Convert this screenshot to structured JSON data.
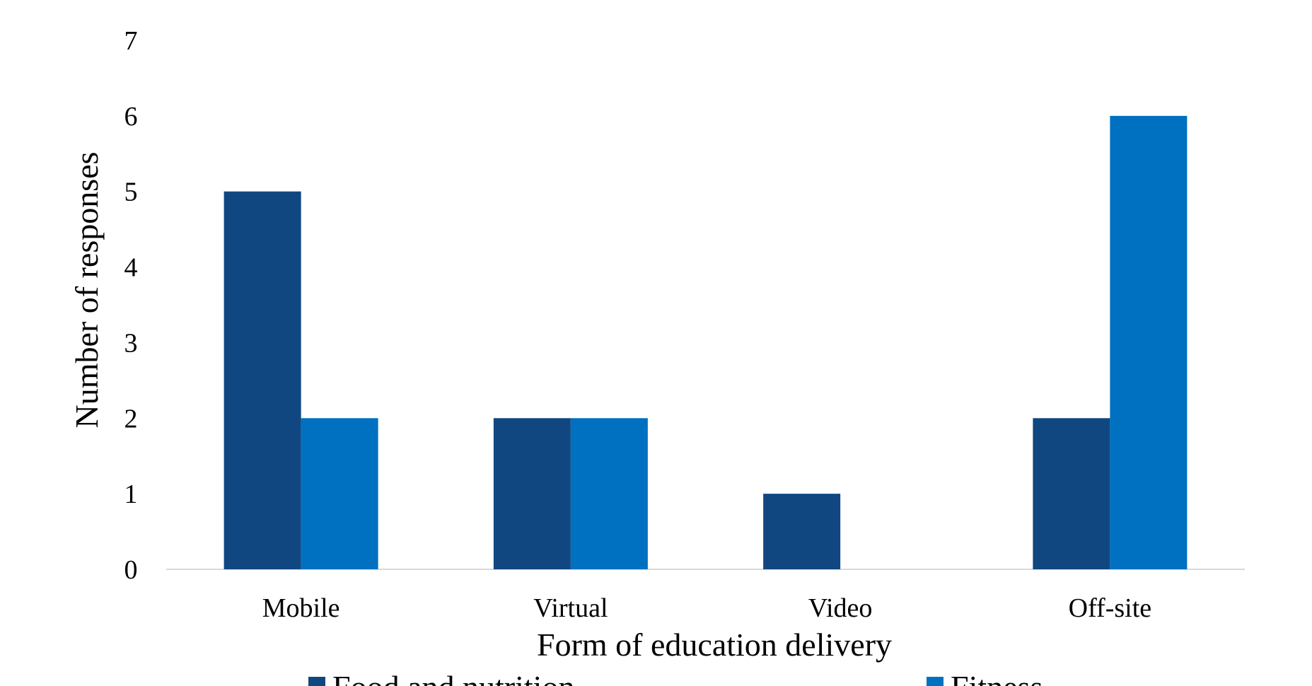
{
  "chart_data": {
    "type": "bar",
    "title": "",
    "xlabel": "Form of education delivery",
    "ylabel": "Number of responses",
    "categories": [
      "Mobile",
      "Virtual",
      "Video",
      "Off-site"
    ],
    "series": [
      {
        "name": "Food and nutrition",
        "values": [
          5,
          2,
          1,
          2
        ],
        "color": "#114781"
      },
      {
        "name": "Fitness",
        "values": [
          2,
          2,
          0,
          6
        ],
        "color": "#0070c0"
      }
    ],
    "ylim": [
      0,
      7
    ],
    "yticks": [
      "0",
      "1",
      "2",
      "3",
      "4",
      "5",
      "6",
      "7"
    ],
    "grid": false,
    "legend": "bottom"
  }
}
